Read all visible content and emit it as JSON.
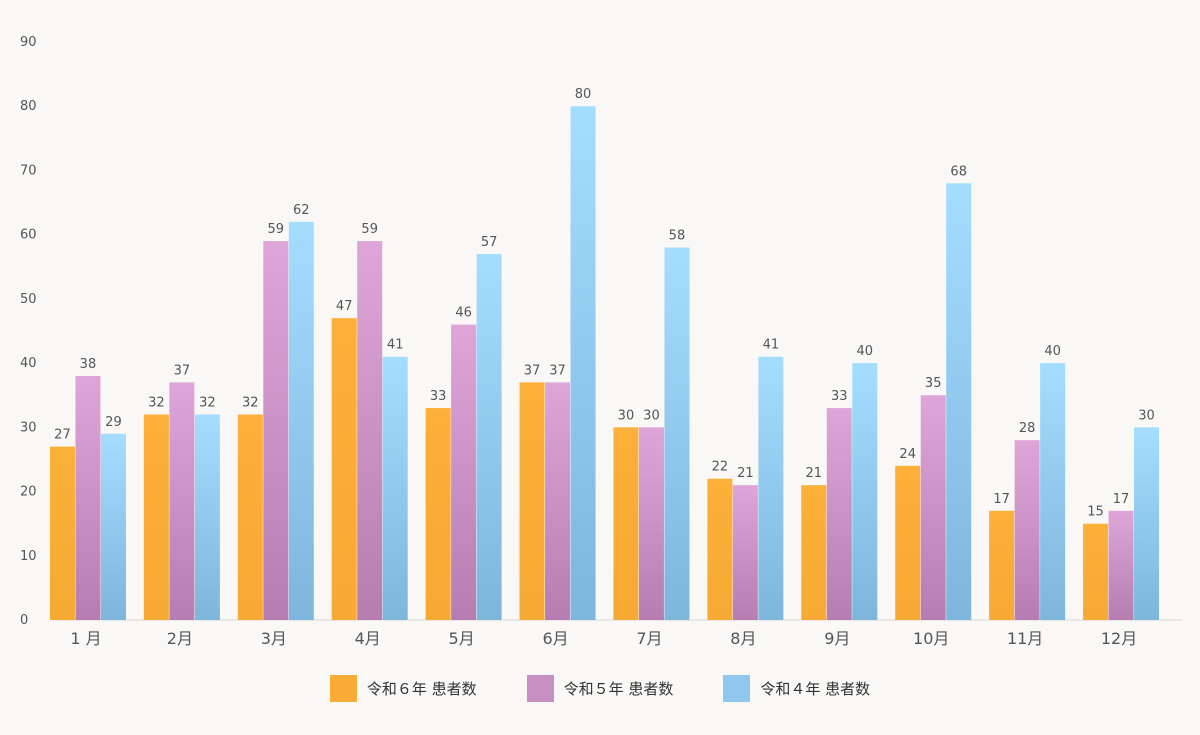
{
  "chart_data": {
    "type": "bar",
    "categories": [
      "1 月",
      "2月",
      "3月",
      "4月",
      "5月",
      "6月",
      "7月",
      "8月",
      "9月",
      "10月",
      "11月",
      "12月"
    ],
    "series": [
      {
        "name": "令和６年 患者数",
        "color": "#f8ac35",
        "values": [
          27,
          32,
          32,
          47,
          33,
          37,
          30,
          22,
          21,
          24,
          17,
          15
        ]
      },
      {
        "name": "令和５年 患者数",
        "color": "#c88fc3",
        "values": [
          38,
          37,
          59,
          59,
          46,
          37,
          30,
          21,
          33,
          35,
          28,
          17
        ]
      },
      {
        "name": "令和４年 患者数",
        "color": "#8fc7ef",
        "values": [
          29,
          32,
          62,
          41,
          57,
          80,
          58,
          41,
          40,
          68,
          40,
          30
        ]
      }
    ],
    "ylim": [
      0,
      90
    ],
    "yticks": [
      0,
      10,
      20,
      30,
      40,
      50,
      60,
      70,
      80,
      90
    ],
    "grid": false,
    "legend_position": "bottom-center",
    "data_labels": true
  }
}
